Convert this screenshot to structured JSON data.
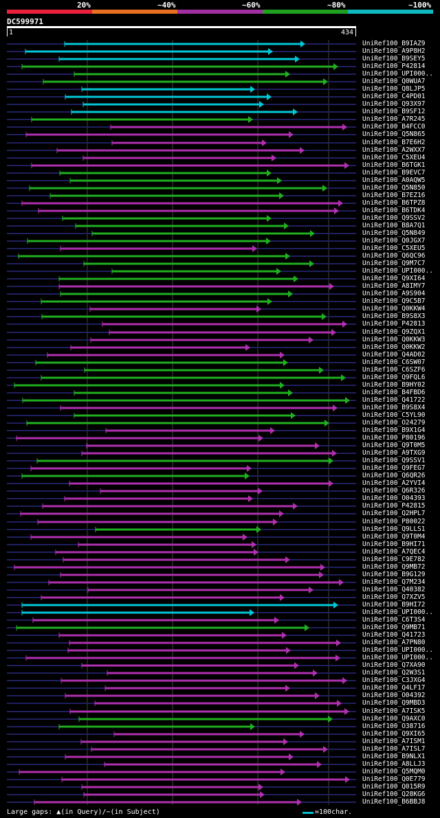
{
  "header": {
    "pct_labels": [
      "20%",
      "~40%",
      "~60%",
      "~80%",
      "~100%"
    ],
    "scale_colors": [
      "#e8203c",
      "#e87020",
      "#a030a0",
      "#20a020",
      "#10b8c0"
    ],
    "query_id": "DC599971",
    "ruler_start": "1",
    "ruler_end": "434"
  },
  "colors": {
    "cyan": "#00c8d8",
    "green": "#20b020",
    "magenta": "#b030b0",
    "backbone": "#202060",
    "grid": "#444444",
    "tri": "#ffff80"
  },
  "hits": [
    {
      "name": "UniRef100_B9IAZ9",
      "c": "cyan"
    },
    {
      "name": "UniRef100_A9P8H2",
      "c": "cyan"
    },
    {
      "name": "UniRef100_B9SEY5",
      "c": "cyan"
    },
    {
      "name": "UniRef100_P42814",
      "c": "green"
    },
    {
      "name": "UniRef100_UPI000..",
      "c": "green"
    },
    {
      "name": "UniRef100_Q0WUA7",
      "c": "green"
    },
    {
      "name": "UniRef100_Q8LJP5",
      "c": "cyan"
    },
    {
      "name": "UniRef100_C4PD01",
      "c": "cyan"
    },
    {
      "name": "UniRef100_Q93X97",
      "c": "cyan"
    },
    {
      "name": "UniRef100_B9SF12",
      "c": "cyan"
    },
    {
      "name": "UniRef100_A7R245",
      "c": "green"
    },
    {
      "name": "UniRef100_B4FCC0",
      "c": "magenta"
    },
    {
      "name": "UniRef100_Q5N865",
      "c": "magenta"
    },
    {
      "name": "UniRef100_B7E6H2",
      "c": "magenta"
    },
    {
      "name": "UniRef100_A2WXX7",
      "c": "magenta"
    },
    {
      "name": "UniRef100_C5XEU4",
      "c": "magenta"
    },
    {
      "name": "UniRef100_B6TGK1",
      "c": "magenta"
    },
    {
      "name": "UniRef100_B9EVC7",
      "c": "green"
    },
    {
      "name": "UniRef100_A0AQW5",
      "c": "green"
    },
    {
      "name": "UniRef100_Q5N850",
      "c": "green"
    },
    {
      "name": "UniRef100_B7EZ16",
      "c": "green"
    },
    {
      "name": "UniRef100_B6TPZ8",
      "c": "magenta"
    },
    {
      "name": "UniRef100_B6TDK4",
      "c": "magenta"
    },
    {
      "name": "UniRef100_Q9SSV2",
      "c": "green"
    },
    {
      "name": "UniRef100_B8A7Q1",
      "c": "green"
    },
    {
      "name": "UniRef100_Q5N849",
      "c": "green"
    },
    {
      "name": "UniRef100_Q0JGX7",
      "c": "green"
    },
    {
      "name": "UniRef100_C5XEU5",
      "c": "magenta"
    },
    {
      "name": "UniRef100_Q6QC96",
      "c": "green"
    },
    {
      "name": "UniRef100_Q9M7C7",
      "c": "green"
    },
    {
      "name": "UniRef100_UPI000..",
      "c": "green"
    },
    {
      "name": "UniRef100_Q9XI64",
      "c": "green"
    },
    {
      "name": "UniRef100_A8IMY7",
      "c": "magenta"
    },
    {
      "name": "UniRef100_A9S904",
      "c": "green"
    },
    {
      "name": "UniRef100_Q9C5B7",
      "c": "green"
    },
    {
      "name": "UniRef100_Q0KKW4",
      "c": "magenta"
    },
    {
      "name": "UniRef100_B9S8X3",
      "c": "green"
    },
    {
      "name": "UniRef100_P42813",
      "c": "magenta"
    },
    {
      "name": "UniRef100_Q9ZQX1",
      "c": "magenta"
    },
    {
      "name": "UniRef100_Q0KKW3",
      "c": "magenta"
    },
    {
      "name": "UniRef100_Q0KKW2",
      "c": "magenta"
    },
    {
      "name": "UniRef100_Q4AD02",
      "c": "magenta"
    },
    {
      "name": "UniRef100_C6SW07",
      "c": "green"
    },
    {
      "name": "UniRef100_C6SZF6",
      "c": "green"
    },
    {
      "name": "UniRef100_Q9FQL6",
      "c": "green"
    },
    {
      "name": "UniRef100_B9HY02",
      "c": "green"
    },
    {
      "name": "UniRef100_B4FBD6",
      "c": "green"
    },
    {
      "name": "UniRef100_Q41722",
      "c": "green"
    },
    {
      "name": "UniRef100_B9S8X4",
      "c": "magenta"
    },
    {
      "name": "UniRef100_C5YL90",
      "c": "green"
    },
    {
      "name": "UniRef100_O24279",
      "c": "green"
    },
    {
      "name": "UniRef100_B9X1G4",
      "c": "magenta"
    },
    {
      "name": "UniRef100_P80196",
      "c": "magenta"
    },
    {
      "name": "UniRef100_Q9T0M5",
      "c": "magenta"
    },
    {
      "name": "UniRef100_A9TXG9",
      "c": "magenta"
    },
    {
      "name": "UniRef100_Q9SSV1",
      "c": "green"
    },
    {
      "name": "UniRef100_Q9FEG7",
      "c": "magenta"
    },
    {
      "name": "UniRef100_Q6QR26",
      "c": "green"
    },
    {
      "name": "UniRef100_A2YVI4",
      "c": "magenta"
    },
    {
      "name": "UniRef100_Q6R326",
      "c": "magenta"
    },
    {
      "name": "UniRef100_O04393",
      "c": "magenta"
    },
    {
      "name": "UniRef100_P42815",
      "c": "magenta"
    },
    {
      "name": "UniRef100_Q2HPL7",
      "c": "magenta"
    },
    {
      "name": "UniRef100_P80022",
      "c": "magenta"
    },
    {
      "name": "UniRef100_Q9LLS1",
      "c": "green"
    },
    {
      "name": "UniRef100_Q9T0M4",
      "c": "magenta"
    },
    {
      "name": "UniRef100_B9HI71",
      "c": "magenta"
    },
    {
      "name": "UniRef100_A7QEC4",
      "c": "magenta"
    },
    {
      "name": "UniRef100_C9E782",
      "c": "magenta"
    },
    {
      "name": "UniRef100_Q9MB72",
      "c": "magenta"
    },
    {
      "name": "UniRef100_B9G129",
      "c": "magenta"
    },
    {
      "name": "UniRef100_Q7M234",
      "c": "magenta"
    },
    {
      "name": "UniRef100_Q40382",
      "c": "magenta"
    },
    {
      "name": "UniRef100_Q7XZV5",
      "c": "magenta"
    },
    {
      "name": "UniRef100_B9HI72",
      "c": "cyan"
    },
    {
      "name": "UniRef100_UPI000..",
      "c": "cyan"
    },
    {
      "name": "UniRef100_C6T3S4",
      "c": "magenta"
    },
    {
      "name": "UniRef100_Q9MB71",
      "c": "green"
    },
    {
      "name": "UniRef100_Q41723",
      "c": "magenta"
    },
    {
      "name": "UniRef100_A7PN80",
      "c": "magenta"
    },
    {
      "name": "UniRef100_UPI000..",
      "c": "magenta"
    },
    {
      "name": "UniRef100_UPI000..",
      "c": "magenta"
    },
    {
      "name": "UniRef100_Q7XA90",
      "c": "magenta"
    },
    {
      "name": "UniRef100_Q2W3S1",
      "c": "magenta"
    },
    {
      "name": "UniRef100_C3JXG4",
      "c": "magenta"
    },
    {
      "name": "UniRef100_Q4LF17",
      "c": "magenta"
    },
    {
      "name": "UniRef100_O04392",
      "c": "magenta"
    },
    {
      "name": "UniRef100_Q9MBD3",
      "c": "magenta"
    },
    {
      "name": "UniRef100_A7ISK5",
      "c": "magenta"
    },
    {
      "name": "UniRef100_Q9AXC0",
      "c": "green"
    },
    {
      "name": "UniRef100_O38716",
      "c": "green"
    },
    {
      "name": "UniRef100_Q9XI65",
      "c": "magenta"
    },
    {
      "name": "UniRef100_A7ISM1",
      "c": "magenta"
    },
    {
      "name": "UniRef100_A7ISL7",
      "c": "magenta"
    },
    {
      "name": "UniRef100_B9NLX1",
      "c": "magenta"
    },
    {
      "name": "UniRef100_A8LLJ3",
      "c": "magenta"
    },
    {
      "name": "UniRef100_Q5MQM0",
      "c": "magenta"
    },
    {
      "name": "UniRef100_Q0E779",
      "c": "magenta"
    },
    {
      "name": "UniRef100_Q015R9",
      "c": "magenta"
    },
    {
      "name": "UniRef100_Q28KG6",
      "c": "magenta"
    },
    {
      "name": "UniRef100_B6BBJ8",
      "c": "magenta"
    }
  ],
  "footer": {
    "large_gaps": "Large gaps: ▲(in Query)/−(in Subject)",
    "legend": "=100char."
  }
}
